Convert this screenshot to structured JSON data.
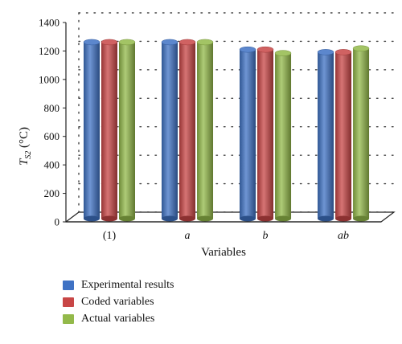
{
  "chart_data": {
    "type": "bar",
    "categories": [
      "(1)",
      "a",
      "b",
      "ab"
    ],
    "series": [
      {
        "name": "Experimental results",
        "color": "#3f72c4",
        "values": [
          1262,
          1262,
          1210,
          1192
        ]
      },
      {
        "name": "Coded variables",
        "color": "#c84646",
        "values": [
          1262,
          1262,
          1210,
          1192
        ]
      },
      {
        "name": "Actual variables",
        "color": "#93b94a",
        "values": [
          1262,
          1262,
          1185,
          1218
        ]
      }
    ],
    "xlabel": "Variables",
    "ylabel_main": "T",
    "ylabel_sub": "S2",
    "ylabel_unit": " (°C)",
    "ylim": [
      0,
      1400
    ],
    "yticks": [
      0,
      200,
      400,
      600,
      800,
      1000,
      1200,
      1400
    ],
    "grid": true,
    "legend_position": "bottom-left"
  }
}
